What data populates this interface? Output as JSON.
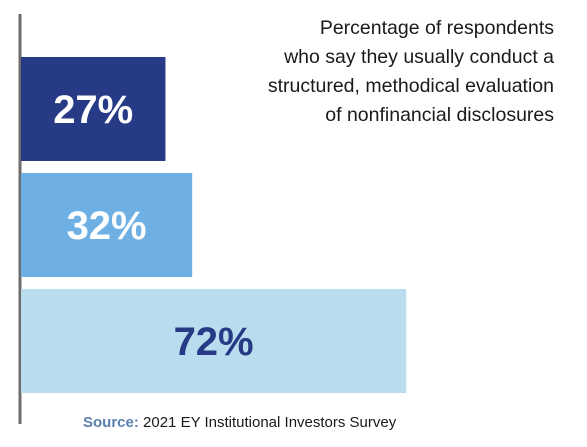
{
  "chart_data": {
    "type": "bar",
    "orientation": "horizontal",
    "title_lines": [
      "Percentage of respondents",
      "who say they usually conduct a",
      "structured, methodical evaluation",
      "of nonfinancial disclosures"
    ],
    "values": [
      27,
      32,
      72
    ],
    "data_labels": [
      "27%",
      "32%",
      "72%"
    ],
    "xlim": [
      0,
      100
    ],
    "grid": false,
    "legend": "none",
    "colors": {
      "bars": [
        "#263a86",
        "#6eb0e3",
        "#b9dcef"
      ],
      "labels": [
        "#ffffff",
        "#ffffff",
        "#263a86"
      ],
      "axis": "#6d6d6d"
    }
  },
  "source": {
    "label": "Source:",
    "text": "2021 EY Institutional Investors Survey"
  }
}
